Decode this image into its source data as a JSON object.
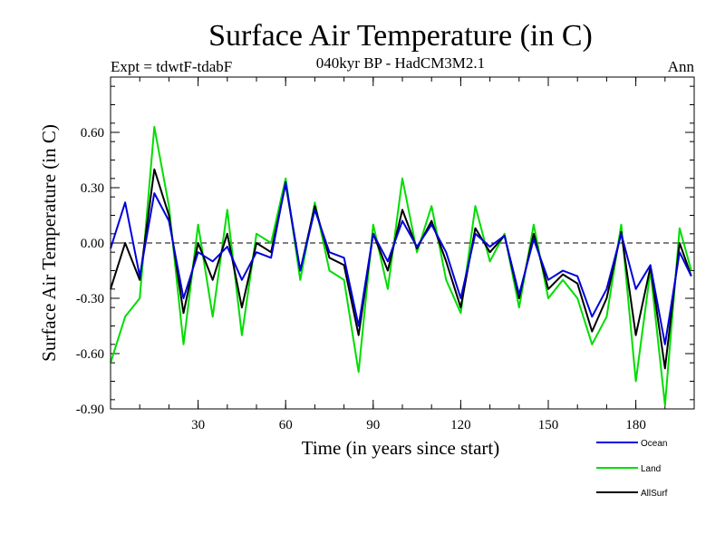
{
  "chart_data": {
    "type": "line",
    "title": "Surface Air Temperature (in C)",
    "subtitle": "040kyr BP - HadCM3M2.1",
    "experiment_label": "Expt = tdwtF-tdabF",
    "period_label": "Ann",
    "xlabel": "Time (in years since start)",
    "ylabel": "Surface Air Temperature (in C)",
    "xlim": [
      0,
      200
    ],
    "ylim": [
      -0.9,
      0.9
    ],
    "xticks": [
      30,
      60,
      90,
      120,
      150,
      180
    ],
    "xtick_labels": [
      "30",
      "60",
      "90",
      "120",
      "150",
      "180"
    ],
    "yticks": [
      -0.9,
      -0.6,
      -0.3,
      0.0,
      0.3,
      0.6
    ],
    "ytick_labels": [
      "-0.90",
      "-0.60",
      "-0.30",
      "0.00",
      "0.30",
      "0.60"
    ],
    "zero_line": "dashed",
    "legend_position": "bottom-right below plot",
    "x": [
      0,
      5,
      10,
      15,
      20,
      25,
      30,
      35,
      40,
      45,
      50,
      55,
      60,
      65,
      70,
      75,
      80,
      85,
      90,
      95,
      100,
      105,
      110,
      115,
      120,
      125,
      130,
      135,
      140,
      145,
      150,
      155,
      160,
      165,
      170,
      175,
      180,
      185,
      190,
      195,
      199
    ],
    "series": [
      {
        "name": "Ocean",
        "color": "#0000dd",
        "values": [
          -0.03,
          0.22,
          -0.18,
          0.27,
          0.12,
          -0.3,
          -0.05,
          -0.1,
          -0.02,
          -0.2,
          -0.05,
          -0.08,
          0.33,
          -0.15,
          0.18,
          -0.05,
          -0.08,
          -0.45,
          0.05,
          -0.1,
          0.12,
          -0.02,
          0.1,
          -0.05,
          -0.3,
          0.05,
          -0.02,
          0.04,
          -0.28,
          0.02,
          -0.2,
          -0.15,
          -0.18,
          -0.4,
          -0.25,
          0.05,
          -0.25,
          -0.12,
          -0.55,
          -0.05,
          -0.18
        ]
      },
      {
        "name": "Land",
        "color": "#00dd00",
        "values": [
          -0.65,
          -0.4,
          -0.3,
          0.63,
          0.2,
          -0.55,
          0.1,
          -0.4,
          0.18,
          -0.5,
          0.05,
          0.0,
          0.35,
          -0.2,
          0.22,
          -0.15,
          -0.2,
          -0.7,
          0.1,
          -0.25,
          0.35,
          -0.05,
          0.2,
          -0.2,
          -0.38,
          0.2,
          -0.1,
          0.05,
          -0.35,
          0.1,
          -0.3,
          -0.2,
          -0.3,
          -0.55,
          -0.4,
          0.1,
          -0.75,
          -0.15,
          -0.88,
          0.08,
          -0.15
        ]
      },
      {
        "name": "AllSurf",
        "color": "#000000",
        "values": [
          -0.25,
          0.0,
          -0.2,
          0.4,
          0.15,
          -0.38,
          0.0,
          -0.2,
          0.05,
          -0.35,
          0.0,
          -0.05,
          0.32,
          -0.15,
          0.2,
          -0.08,
          -0.12,
          -0.5,
          0.05,
          -0.15,
          0.18,
          -0.03,
          0.12,
          -0.1,
          -0.35,
          0.08,
          -0.05,
          0.04,
          -0.3,
          0.05,
          -0.25,
          -0.17,
          -0.22,
          -0.48,
          -0.3,
          0.06,
          -0.5,
          -0.13,
          -0.68,
          0.0,
          -0.18
        ]
      }
    ]
  }
}
